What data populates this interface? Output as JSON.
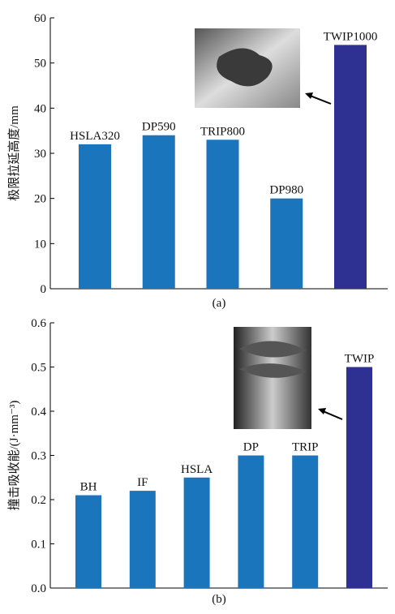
{
  "chart_data": [
    {
      "type": "bar",
      "ylabel": "极限拉延高度/mm",
      "caption": "(a)",
      "categories": [
        "HSLA320",
        "DP590",
        "TRIP800",
        "DP980",
        "TWIP1000"
      ],
      "values": [
        32,
        34,
        33,
        20,
        54
      ],
      "colors": [
        "#1b75bc",
        "#1b75bc",
        "#1b75bc",
        "#1b75bc",
        "#2e3192"
      ],
      "ylim": [
        0,
        60
      ],
      "yticks": [
        0,
        10,
        20,
        30,
        40,
        50,
        60
      ]
    },
    {
      "type": "bar",
      "ylabel": "撞击吸收能/(J·mm⁻³)",
      "caption": "(b)",
      "categories": [
        "BH",
        "IF",
        "HSLA",
        "DP",
        "TRIP",
        "TWIP"
      ],
      "values": [
        0.21,
        0.22,
        0.25,
        0.3,
        0.3,
        0.5
      ],
      "colors": [
        "#1b75bc",
        "#1b75bc",
        "#1b75bc",
        "#1b75bc",
        "#1b75bc",
        "#2e3192"
      ],
      "ylim": [
        0,
        0.6
      ],
      "yticks": [
        {
          "value": 0,
          "label": "0.0"
        },
        0.1,
        0.2,
        0.3,
        0.4,
        0.5,
        0.6
      ]
    }
  ]
}
